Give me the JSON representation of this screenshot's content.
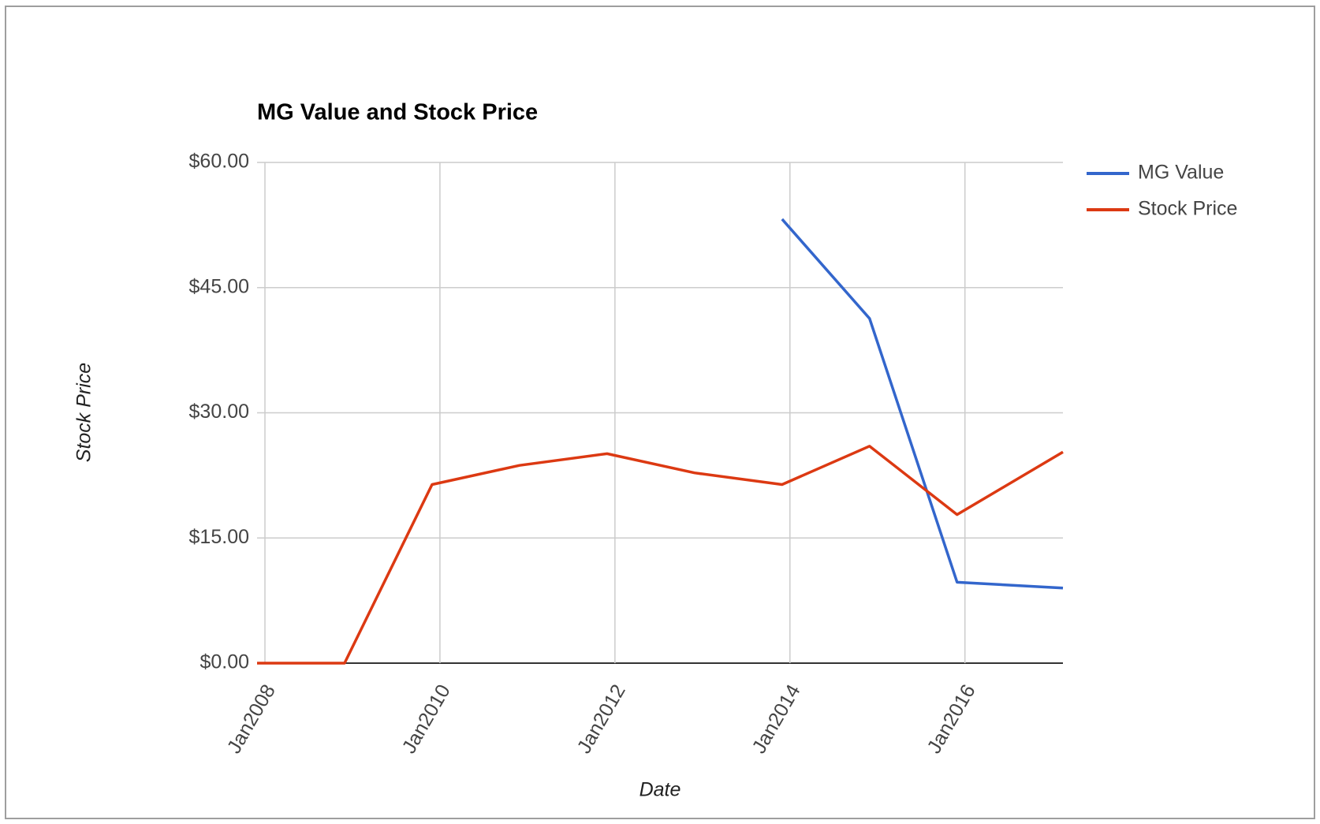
{
  "chart_data": {
    "type": "line",
    "title": "MG Value and Stock Price",
    "x_label": "Date",
    "y_label": "Stock Price",
    "x": [
      2007.91,
      2008.91,
      2009.91,
      2010.91,
      2011.91,
      2012.91,
      2013.91,
      2014.91,
      2015.91,
      2017.12
    ],
    "series": [
      {
        "name": "MG Value",
        "color": "#3366cc",
        "values": [
          null,
          null,
          null,
          null,
          null,
          null,
          53.2,
          41.3,
          9.7,
          9.0
        ]
      },
      {
        "name": "Stock Price",
        "color": "#dc3912",
        "values": [
          0,
          0,
          21.4,
          23.7,
          25.1,
          22.8,
          21.4,
          26.0,
          17.8,
          25.3
        ]
      }
    ],
    "xlim": [
      2007.91,
      2017.12
    ],
    "xticks": [
      {
        "value": 2008,
        "label": "Jan2008"
      },
      {
        "value": 2010,
        "label": "Jan2010"
      },
      {
        "value": 2012,
        "label": "Jan2012"
      },
      {
        "value": 2014,
        "label": "Jan2014"
      },
      {
        "value": 2016,
        "label": "Jan2016"
      }
    ],
    "ylim": [
      0,
      60
    ],
    "yticks": [
      {
        "value": 0,
        "label": "$0.00"
      },
      {
        "value": 15,
        "label": "$15.00"
      },
      {
        "value": 30,
        "label": "$30.00"
      },
      {
        "value": 45,
        "label": "$45.00"
      },
      {
        "value": 60,
        "label": "$60.00"
      }
    ],
    "grid": true,
    "legend": "right"
  }
}
